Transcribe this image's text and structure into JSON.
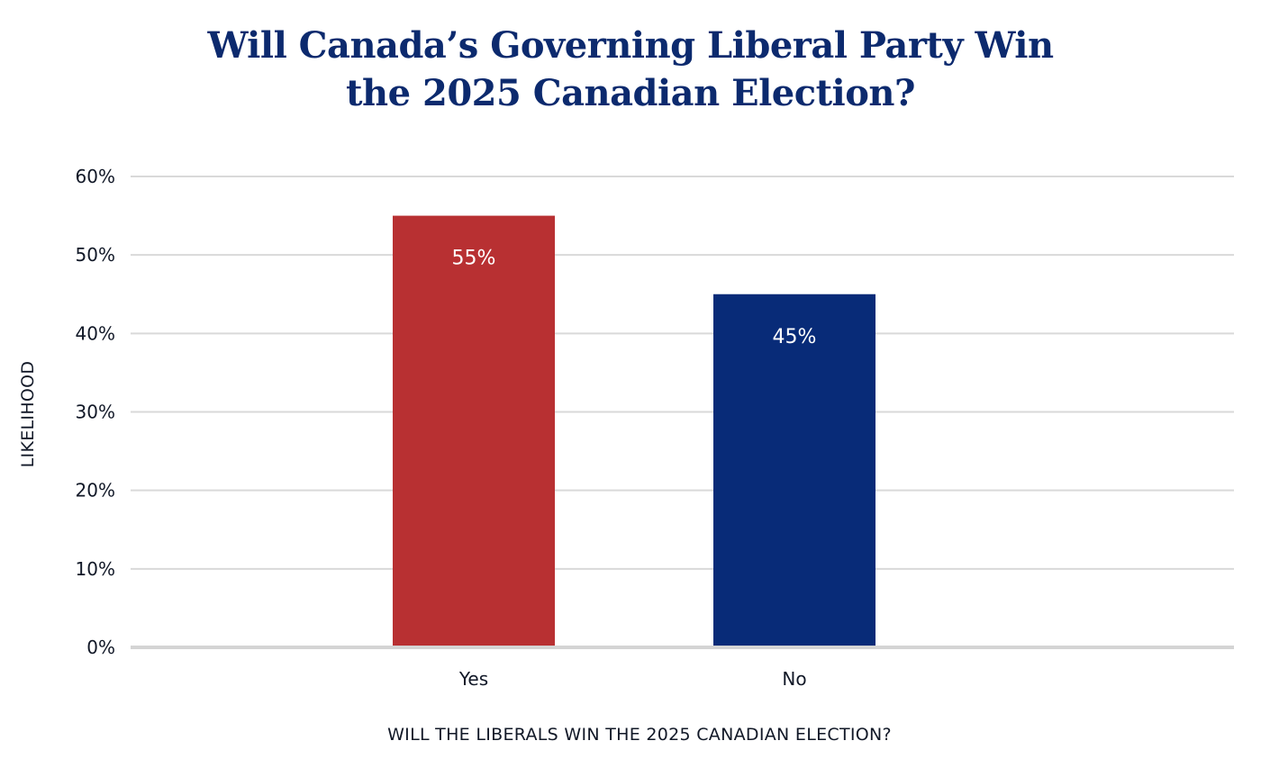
{
  "chart_data": {
    "type": "bar",
    "title_lines": [
      "Will Canada’s Governing Liberal Party Win",
      "the 2025 Canadian Election?"
    ],
    "categories": [
      "Yes",
      "No"
    ],
    "values": [
      55,
      45
    ],
    "data_labels": [
      "55%",
      "45%"
    ],
    "bar_colors": [
      "#b83032",
      "#082b78"
    ],
    "xlabel": "WILL THE LIBERALS WIN THE 2025 CANADIAN ELECTION?",
    "ylabel": "LIKELIHOOD",
    "ylim": [
      0,
      60
    ],
    "y_ticks": [
      0,
      10,
      20,
      30,
      40,
      50,
      60
    ],
    "y_tick_labels": [
      "0%",
      "10%",
      "20%",
      "30%",
      "40%",
      "50%",
      "60%"
    ],
    "grid": true,
    "legend": "none"
  }
}
